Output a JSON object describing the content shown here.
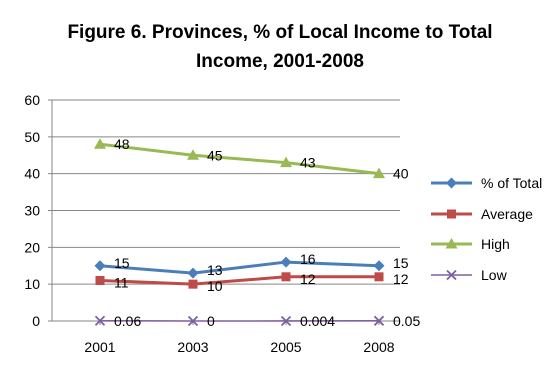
{
  "chart_data": {
    "type": "line",
    "title_line1": "Figure 6.   Provinces, % of Local Income to Total",
    "title_line2": "Income, 2001-2008",
    "categories": [
      "2001",
      "2003",
      "2005",
      "2008"
    ],
    "ylim": [
      0,
      60
    ],
    "yticks": [
      "0",
      "10",
      "20",
      "30",
      "40",
      "50",
      "60"
    ],
    "grid": "horizontal",
    "legend_position": "right",
    "series": [
      {
        "name": "% of Total",
        "values": [
          15,
          13,
          16,
          15
        ],
        "labels": [
          "15",
          "13",
          "16",
          "15"
        ],
        "color": "#4a7ebb",
        "marker": "diamond"
      },
      {
        "name": "Average",
        "values": [
          11,
          10,
          12,
          12
        ],
        "labels": [
          "11",
          "10",
          "12",
          "12"
        ],
        "color": "#be4b48",
        "marker": "square"
      },
      {
        "name": "High",
        "values": [
          48,
          45,
          43,
          40
        ],
        "labels": [
          "48",
          "45",
          "43",
          "40"
        ],
        "color": "#98b954",
        "marker": "triangle"
      },
      {
        "name": "Low",
        "values": [
          0.06,
          0,
          0.004,
          0.05
        ],
        "labels": [
          "0.06",
          "0",
          "0.004",
          "0.05"
        ],
        "color": "#7d60a0",
        "marker": "x"
      }
    ]
  }
}
